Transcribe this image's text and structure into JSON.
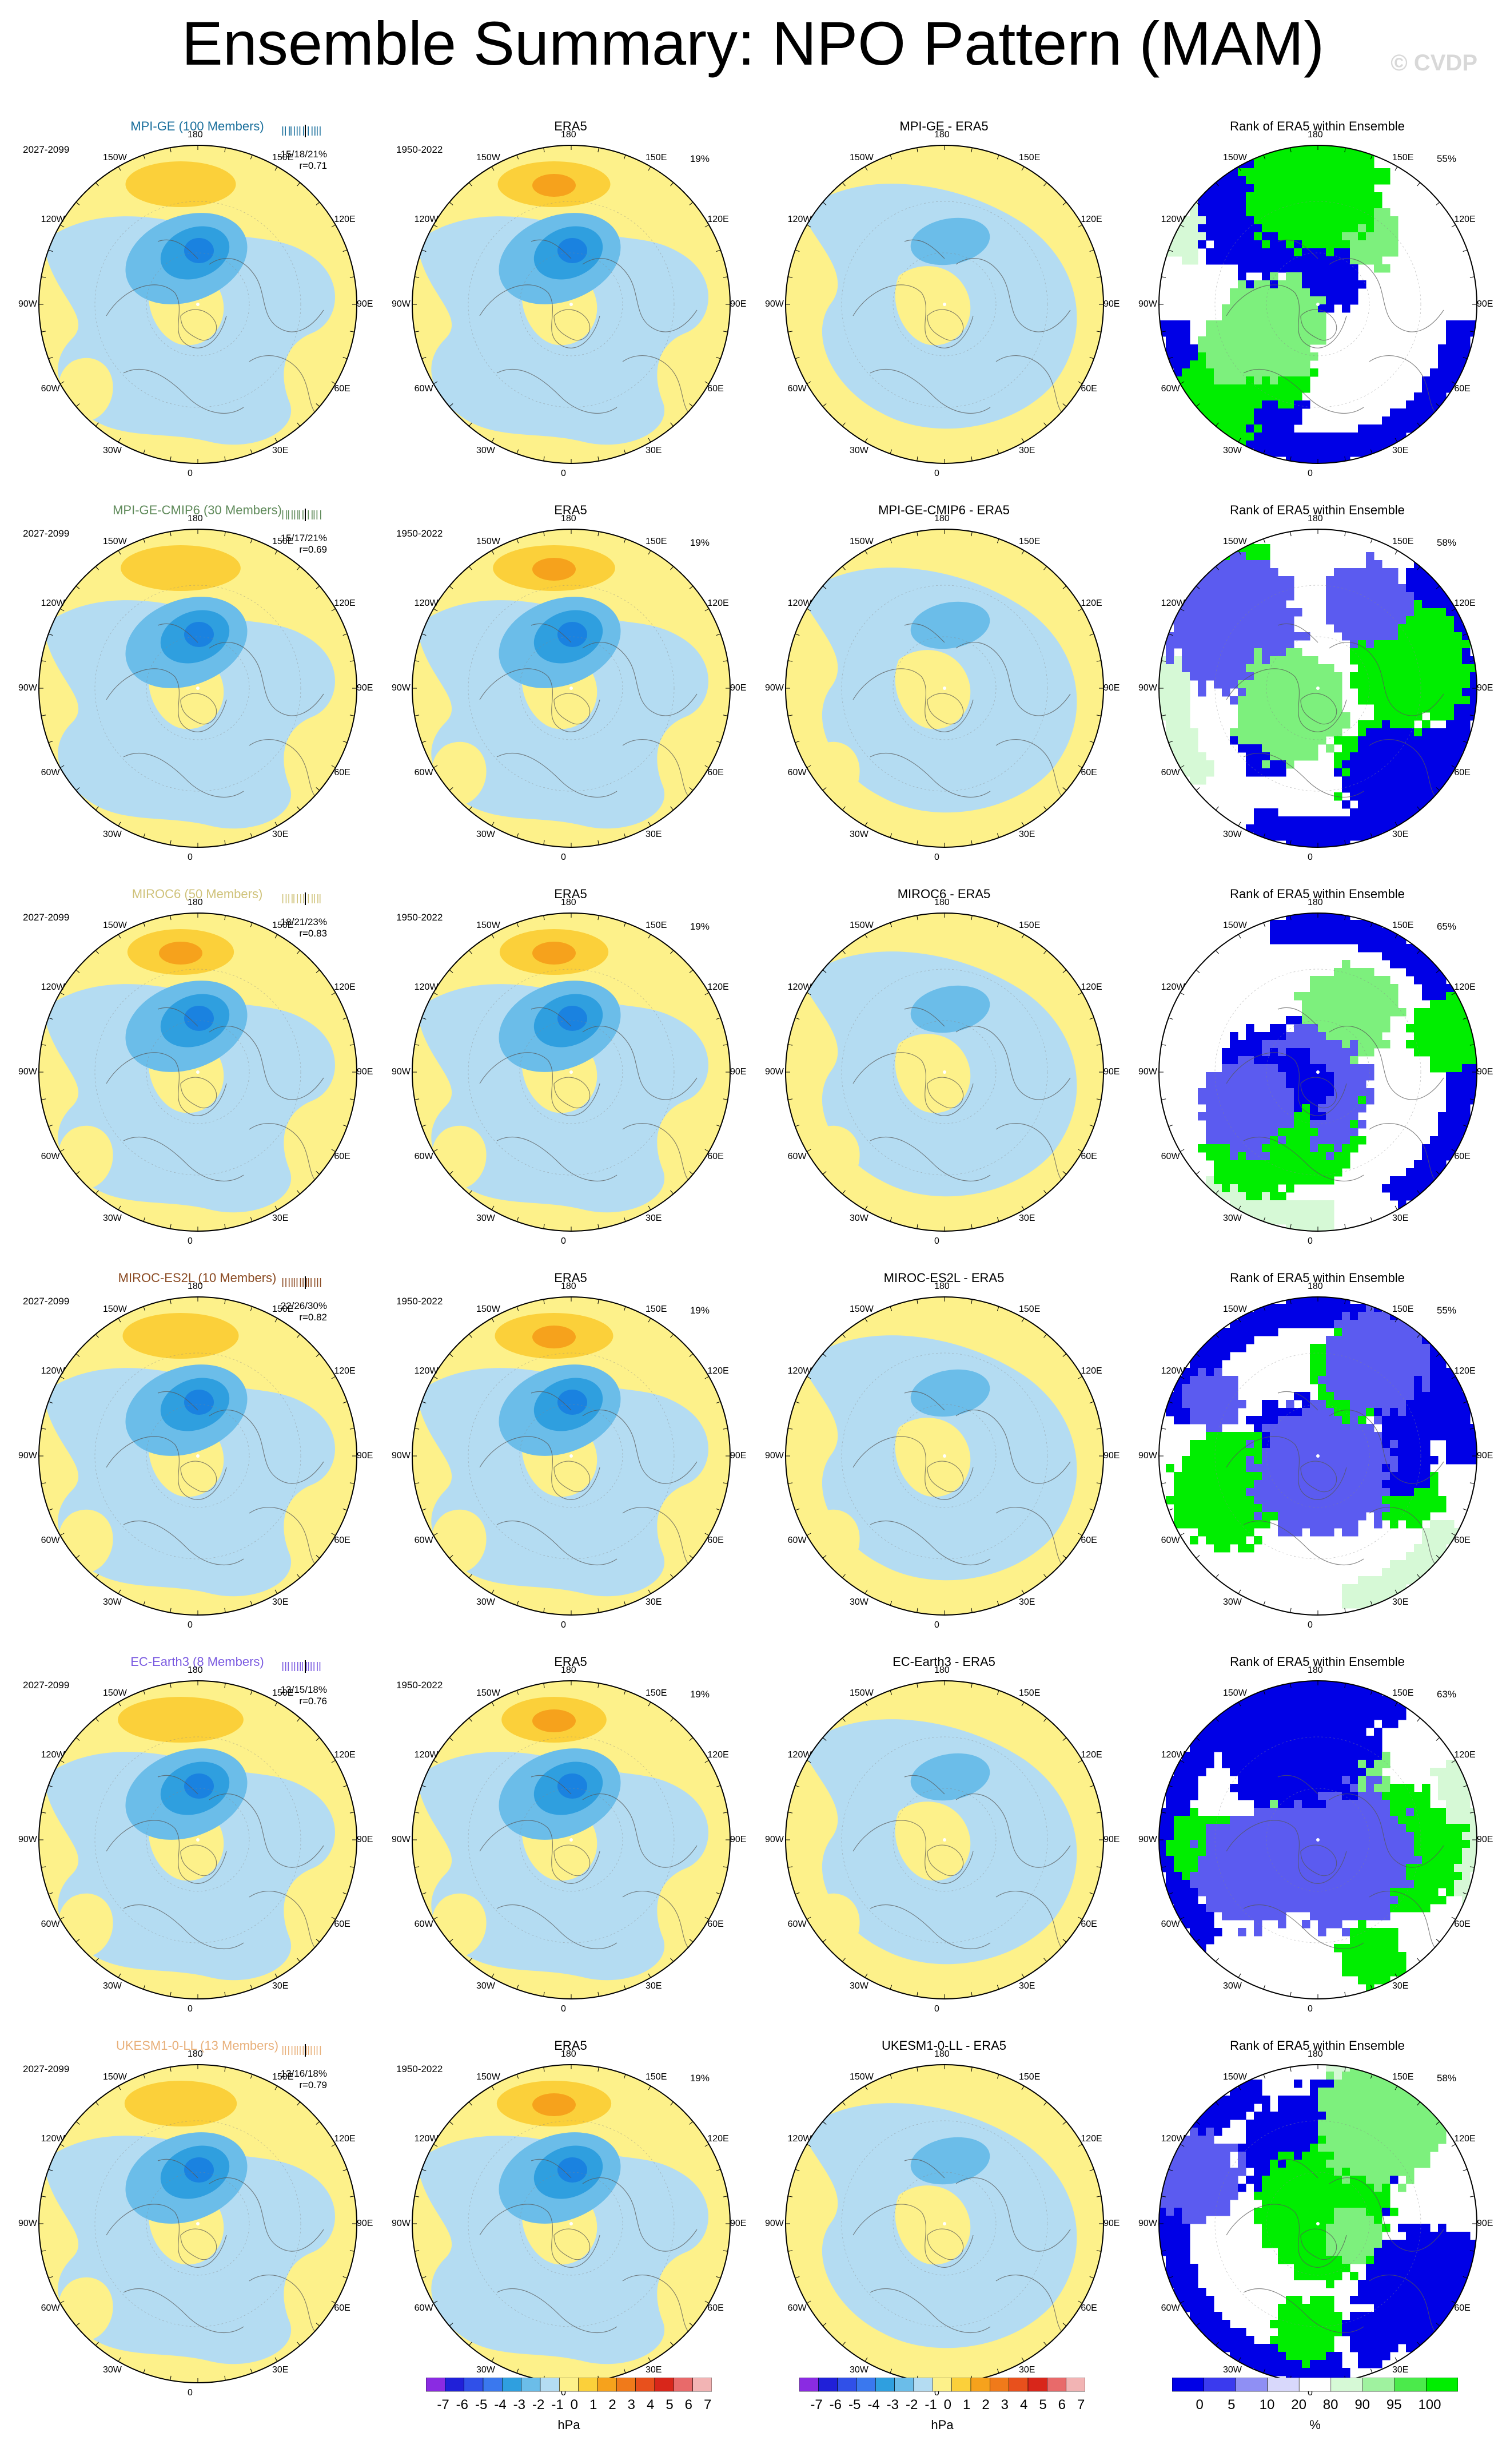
{
  "title": "Ensemble Summary: NPO Pattern (MAM)",
  "watermark": "© CVDP",
  "colors": {
    "pos1": "#fdf18a",
    "pos2": "#fbd03a",
    "pos3": "#f6a21c",
    "neg1": "#b4dcf2",
    "neg2": "#6bbde9",
    "neg3": "#2f9fdf",
    "neg4": "#1a82e0",
    "rank_low": "#0000e6",
    "rank_low2": "#5b5bf0",
    "rank_low3": "#c9c9f8",
    "rank_high": "#00ee00",
    "rank_high2": "#7df07d",
    "rank_high3": "#d6f9d6",
    "model_colors": [
      "#1a6f9c",
      "#5f8a5a",
      "#cfc27a",
      "#8a4a22",
      "#7a5ae0",
      "#e8b07a"
    ]
  },
  "lon_labels": {
    "top": "180",
    "bottom": "0",
    "upper_left": "150W",
    "upper_right": "150E",
    "mid_upper_left": "120W",
    "mid_upper_right": "120E",
    "left": "90W",
    "right": "90E",
    "mid_lower_left": "60W",
    "mid_lower_right": "60E",
    "lower_left": "30W",
    "lower_right": "30E"
  },
  "rows": [
    {
      "model": {
        "title": "MPI-GE (100 Members)",
        "period": "2027-2099",
        "stats": "15/18/21%",
        "r": "r=0.71"
      },
      "era5": {
        "title": "ERA5",
        "period": "1950-2022",
        "pct": "19%"
      },
      "diff": {
        "title": "MPI-GE - ERA5"
      },
      "rank": {
        "title": "Rank of ERA5 within Ensemble",
        "pct": "55%"
      }
    },
    {
      "model": {
        "title": "MPI-GE-CMIP6 (30 Members)",
        "period": "2027-2099",
        "stats": "15/17/21%",
        "r": "r=0.69"
      },
      "era5": {
        "title": "ERA5",
        "period": "1950-2022",
        "pct": "19%"
      },
      "diff": {
        "title": "MPI-GE-CMIP6 - ERA5"
      },
      "rank": {
        "title": "Rank of ERA5 within Ensemble",
        "pct": "58%"
      }
    },
    {
      "model": {
        "title": "MIROC6 (50 Members)",
        "period": "2027-2099",
        "stats": "18/21/23%",
        "r": "r=0.83"
      },
      "era5": {
        "title": "ERA5",
        "period": "1950-2022",
        "pct": "19%"
      },
      "diff": {
        "title": "MIROC6 - ERA5"
      },
      "rank": {
        "title": "Rank of ERA5 within Ensemble",
        "pct": "65%"
      }
    },
    {
      "model": {
        "title": "MIROC-ES2L (10 Members)",
        "period": "2027-2099",
        "stats": "22/26/30%",
        "r": "r=0.82"
      },
      "era5": {
        "title": "ERA5",
        "period": "1950-2022",
        "pct": "19%"
      },
      "diff": {
        "title": "MIROC-ES2L - ERA5"
      },
      "rank": {
        "title": "Rank of ERA5 within Ensemble",
        "pct": "55%"
      }
    },
    {
      "model": {
        "title": "EC-Earth3 (8 Members)",
        "period": "2027-2099",
        "stats": "13/15/18%",
        "r": "r=0.76"
      },
      "era5": {
        "title": "ERA5",
        "period": "1950-2022",
        "pct": "19%"
      },
      "diff": {
        "title": "EC-Earth3 - ERA5"
      },
      "rank": {
        "title": "Rank of ERA5 within Ensemble",
        "pct": "63%"
      }
    },
    {
      "model": {
        "title": "UKESM1-0-LL (13 Members)",
        "period": "2027-2099",
        "stats": "13/16/18%",
        "r": "r=0.79"
      },
      "era5": {
        "title": "ERA5",
        "period": "1950-2022",
        "pct": "19%"
      },
      "diff": {
        "title": "UKESM1-0-LL - ERA5"
      },
      "rank": {
        "title": "Rank of ERA5 within Ensemble",
        "pct": "58%"
      }
    }
  ],
  "colorbars": {
    "hpa": {
      "labels": [
        "-7",
        "-6",
        "-5",
        "-4",
        "-3",
        "-2",
        "-1",
        "0",
        "1",
        "2",
        "3",
        "4",
        "5",
        "6",
        "7"
      ],
      "unit": "hPa",
      "colors": [
        "#8a2be2",
        "#2020d8",
        "#3050e8",
        "#3a78ee",
        "#2f9fdf",
        "#6bbde9",
        "#b4dcf2",
        "#fdf18a",
        "#fbd03a",
        "#f6a21c",
        "#f07a1a",
        "#e8501c",
        "#d8261a",
        "#e86a6a",
        "#f2b4b4"
      ]
    },
    "rank": {
      "labels": [
        "0",
        "5",
        "10",
        "20",
        "80",
        "90",
        "95",
        "100"
      ],
      "unit": "%",
      "colors": [
        "#0000e6",
        "#3a3aee",
        "#8f8ff4",
        "#d8d8fb",
        "#ffffff",
        "#d6f9d6",
        "#9ff29f",
        "#4bea4b",
        "#00ee00"
      ]
    }
  }
}
